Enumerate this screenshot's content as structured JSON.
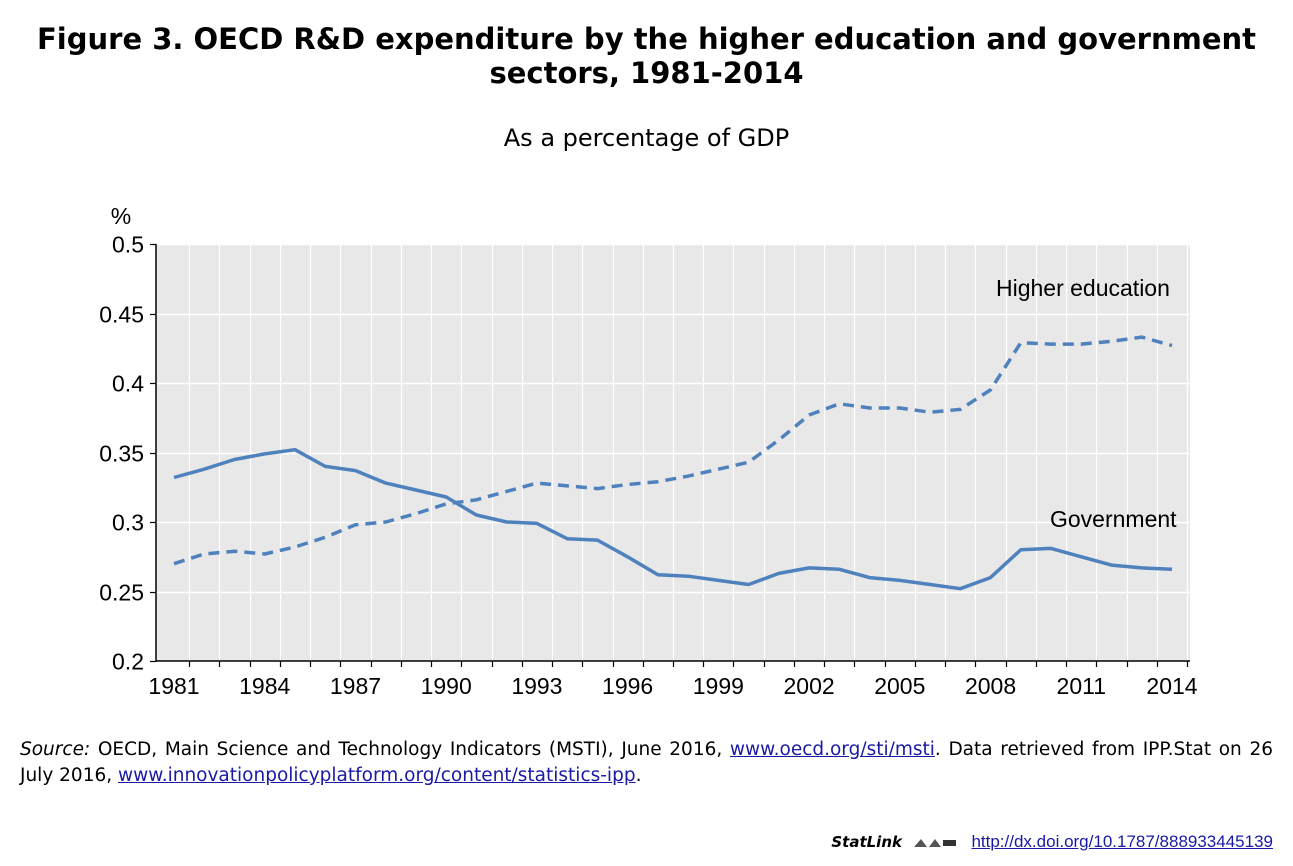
{
  "title": "Figure 3. OECD R&D expenditure by the higher education and government sectors, 1981-2014",
  "subtitle": "As a percentage of GDP",
  "chart_data": {
    "type": "line",
    "ylabel": "%",
    "ylim": [
      0.2,
      0.5
    ],
    "yticks": [
      "0.2",
      "0.25",
      "0.3",
      "0.35",
      "0.4",
      "0.45",
      "0.5"
    ],
    "xlim": [
      1981,
      2014
    ],
    "xticks": [
      "1981",
      "1984",
      "1987",
      "1990",
      "1993",
      "1996",
      "1999",
      "2002",
      "2005",
      "2008",
      "2011",
      "2014"
    ],
    "grid": true,
    "x": [
      1981,
      1982,
      1983,
      1984,
      1985,
      1986,
      1987,
      1988,
      1989,
      1990,
      1991,
      1992,
      1993,
      1994,
      1995,
      1996,
      1997,
      1998,
      1999,
      2000,
      2001,
      2002,
      2003,
      2004,
      2005,
      2006,
      2007,
      2008,
      2009,
      2010,
      2011,
      2012,
      2013,
      2014
    ],
    "series": [
      {
        "name": "Higher education",
        "style": "dashed",
        "color": "#4f81bd",
        "values": [
          0.27,
          0.277,
          0.279,
          0.277,
          0.282,
          0.289,
          0.298,
          0.3,
          0.306,
          0.313,
          0.316,
          0.322,
          0.328,
          0.326,
          0.324,
          0.327,
          0.329,
          0.333,
          0.338,
          0.343,
          0.359,
          0.377,
          0.385,
          0.382,
          0.382,
          0.379,
          0.381,
          0.395,
          0.429,
          0.428,
          0.428,
          0.43,
          0.433,
          0.427
        ]
      },
      {
        "name": "Government",
        "style": "solid",
        "color": "#4f81bd",
        "values": [
          0.332,
          0.338,
          0.345,
          0.349,
          0.352,
          0.34,
          0.337,
          0.328,
          0.323,
          0.318,
          0.305,
          0.3,
          0.299,
          0.288,
          0.287,
          0.275,
          0.262,
          0.261,
          0.258,
          0.255,
          0.263,
          0.267,
          0.266,
          0.26,
          0.258,
          0.255,
          0.252,
          0.26,
          0.28,
          0.281,
          0.275,
          0.269,
          0.267,
          0.266
        ]
      }
    ],
    "annotations": [
      "Higher education",
      "Government"
    ]
  },
  "source": {
    "label": "Source:",
    "text1": " OECD, Main Science and Technology Indicators (MSTI), June 2016, ",
    "link1": "www.oecd.org/sti/msti",
    "text2": ". Data retrieved from IPP.Stat on 26 July 2016, ",
    "link2": "www.innovationpolicyplatform.org/content/statistics-ipp",
    "text3": "."
  },
  "statlink": {
    "brand": "StatLink",
    "url": "http://dx.doi.org/10.1787/888933445139"
  }
}
